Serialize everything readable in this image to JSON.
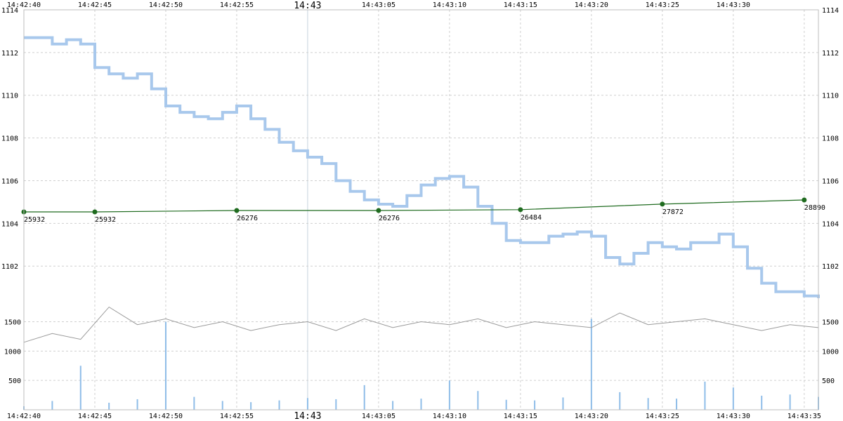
{
  "chart_data": {
    "type": "line",
    "x_ticks_top": [
      "14:42:40",
      "14:42:45",
      "14:42:50",
      "14:42:55",
      "14:43",
      "14:43:05",
      "14:43:10",
      "14:43:15",
      "14:43:20",
      "14:43:25",
      "14:43:30"
    ],
    "x_ticks_bottom": [
      "14:42:40",
      "14:42:45",
      "14:42:50",
      "14:42:55",
      "14:43",
      "14:43:05",
      "14:43:10",
      "14:43:15",
      "14:43:20",
      "14:43:25",
      "14:43:30",
      "14:43:35"
    ],
    "x_range": [
      "14:42:40",
      "14:43:36"
    ],
    "price_axis": {
      "ticks": [
        1102,
        1104,
        1106,
        1108,
        1110,
        1112,
        1114
      ],
      "range": [
        1100.2,
        1114
      ]
    },
    "rate_axis": {
      "ticks": [
        500,
        1000,
        1500
      ],
      "range": [
        0,
        2200
      ]
    },
    "grid": true,
    "series": [
      {
        "role": "price",
        "color": "#a8c8ec",
        "x": [
          "14:42:40",
          "14:42:41",
          "14:42:42",
          "14:42:43",
          "14:42:44",
          "14:42:45",
          "14:42:46",
          "14:42:47",
          "14:42:48",
          "14:42:49",
          "14:42:50",
          "14:42:51",
          "14:42:52",
          "14:42:53",
          "14:42:54",
          "14:42:55",
          "14:42:56",
          "14:42:57",
          "14:42:58",
          "14:42:59",
          "14:43:00",
          "14:43:01",
          "14:43:02",
          "14:43:03",
          "14:43:04",
          "14:43:05",
          "14:43:06",
          "14:43:07",
          "14:43:08",
          "14:43:09",
          "14:43:10",
          "14:43:11",
          "14:43:12",
          "14:43:13",
          "14:43:14",
          "14:43:15",
          "14:43:16",
          "14:43:17",
          "14:43:18",
          "14:43:19",
          "14:43:20",
          "14:43:21",
          "14:43:22",
          "14:43:23",
          "14:43:24",
          "14:43:25",
          "14:43:26",
          "14:43:27",
          "14:43:28",
          "14:43:29",
          "14:43:30",
          "14:43:31",
          "14:43:32",
          "14:43:33",
          "14:43:34",
          "14:43:35",
          "14:43:36"
        ],
        "values": [
          1112.7,
          1112.7,
          1112.4,
          1112.6,
          1112.4,
          1111.3,
          1111.0,
          1110.8,
          1111.0,
          1110.3,
          1109.5,
          1109.2,
          1109.0,
          1108.9,
          1109.2,
          1109.5,
          1108.9,
          1108.4,
          1107.8,
          1107.4,
          1107.1,
          1106.8,
          1106.0,
          1105.5,
          1105.1,
          1104.9,
          1104.8,
          1105.3,
          1105.8,
          1106.1,
          1106.2,
          1105.7,
          1104.8,
          1104.0,
          1103.2,
          1103.1,
          1103.1,
          1103.4,
          1103.5,
          1103.6,
          1103.4,
          1102.4,
          1102.1,
          1102.6,
          1103.1,
          1102.9,
          1102.8,
          1103.1,
          1103.1,
          1103.5,
          1102.9,
          1101.9,
          1101.2,
          1100.8,
          1100.8,
          1100.6,
          1100.5
        ]
      },
      {
        "role": "cumulative",
        "color": "#1f6b1f",
        "x": [
          "14:42:40",
          "14:42:45",
          "14:42:55",
          "14:43:05",
          "14:43:15",
          "14:43:25",
          "14:43:35"
        ],
        "values": [
          25932,
          25932,
          26276,
          26276,
          26484,
          27872,
          28890
        ],
        "labels": [
          "25932",
          "25932",
          "26276",
          "26276",
          "26484",
          "27872",
          "28890"
        ]
      },
      {
        "role": "rate",
        "color": "#9a9a9a",
        "x": [
          "14:42:40",
          "14:42:42",
          "14:42:44",
          "14:42:46",
          "14:42:48",
          "14:42:50",
          "14:42:52",
          "14:42:54",
          "14:42:56",
          "14:42:58",
          "14:43:00",
          "14:43:02",
          "14:43:04",
          "14:43:06",
          "14:43:08",
          "14:43:10",
          "14:43:12",
          "14:43:14",
          "14:43:16",
          "14:43:18",
          "14:43:20",
          "14:43:22",
          "14:43:24",
          "14:43:26",
          "14:43:28",
          "14:43:30",
          "14:43:32",
          "14:43:34",
          "14:43:36"
        ],
        "values": [
          1150,
          1300,
          1200,
          1750,
          1450,
          1550,
          1400,
          1500,
          1350,
          1450,
          1500,
          1350,
          1550,
          1400,
          1500,
          1450,
          1550,
          1400,
          1500,
          1450,
          1400,
          1650,
          1450,
          1500,
          1550,
          1450,
          1350,
          1450,
          1400
        ]
      },
      {
        "role": "volume",
        "color": "#8fbde8",
        "x": [
          "14:42:40",
          "14:42:42",
          "14:42:44",
          "14:42:46",
          "14:42:48",
          "14:42:50",
          "14:42:52",
          "14:42:54",
          "14:42:56",
          "14:42:58",
          "14:43:00",
          "14:43:02",
          "14:43:04",
          "14:43:06",
          "14:43:08",
          "14:43:10",
          "14:43:12",
          "14:43:14",
          "14:43:16",
          "14:43:18",
          "14:43:20",
          "14:43:22",
          "14:43:24",
          "14:43:26",
          "14:43:28",
          "14:43:30",
          "14:43:32",
          "14:43:34",
          "14:43:36"
        ],
        "values": [
          60,
          150,
          750,
          120,
          180,
          1500,
          220,
          150,
          130,
          160,
          200,
          180,
          420,
          150,
          190,
          500,
          320,
          170,
          160,
          210,
          1550,
          300,
          200,
          190,
          480,
          380,
          240,
          260,
          220
        ]
      }
    ]
  }
}
